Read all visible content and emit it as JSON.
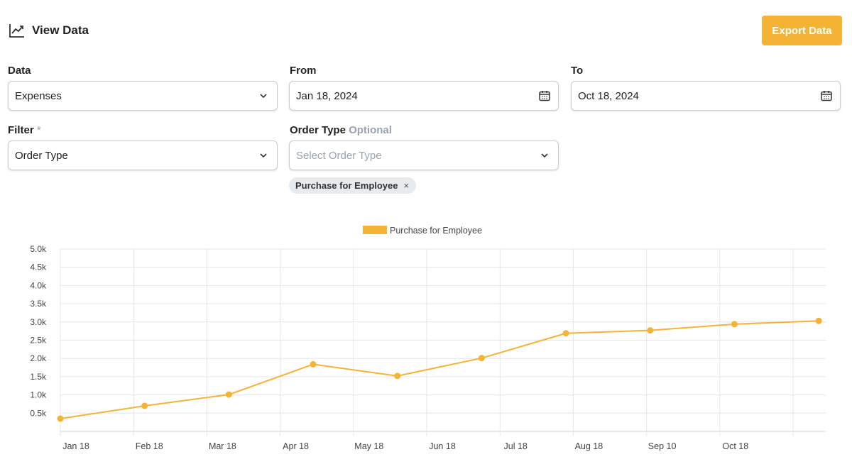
{
  "header": {
    "title": "View Data",
    "icon": "line-chart-icon",
    "export_label": "Export Data"
  },
  "form": {
    "data": {
      "label": "Data",
      "value": "Expenses"
    },
    "from": {
      "label": "From",
      "value": "Jan 18, 2024"
    },
    "to": {
      "label": "To",
      "value": "Oct 18, 2024"
    },
    "filter": {
      "label": "Filter",
      "required_mark": "*",
      "value": "Order Type"
    },
    "order_type": {
      "label": "Order Type",
      "optional_text": "Optional",
      "placeholder": "Select Order Type"
    },
    "selected_chip": {
      "label": "Purchase for Employee",
      "remove": "×"
    }
  },
  "colors": {
    "accent": "#f5b336",
    "series": "#f5b336",
    "grid": "#e6e6e6"
  },
  "chart_data": {
    "type": "line",
    "legend": {
      "position": "top-center"
    },
    "categories": [
      "Jan 18",
      "Feb 18",
      "Mar 18",
      "Apr 18",
      "May 18",
      "Jun 18",
      "Jul 18",
      "Aug 18",
      "Sep 10",
      "Oct 18"
    ],
    "yticks": [
      "0.5k",
      "1.0k",
      "1.5k",
      "2.0k",
      "2.5k",
      "3.0k",
      "3.5k",
      "4.0k",
      "4.5k",
      "5.0k"
    ],
    "ylim": [
      0,
      5000
    ],
    "grid": true,
    "series": [
      {
        "name": "Purchase for Employee",
        "points": [
          {
            "x": 0.0,
            "y": 350
          },
          {
            "x": 1.15,
            "y": 700
          },
          {
            "x": 2.3,
            "y": 1010
          },
          {
            "x": 3.45,
            "y": 1840
          },
          {
            "x": 4.6,
            "y": 1520
          },
          {
            "x": 5.75,
            "y": 2010
          },
          {
            "x": 6.9,
            "y": 2690
          },
          {
            "x": 8.05,
            "y": 2770
          },
          {
            "x": 9.2,
            "y": 2940
          },
          {
            "x": 10.35,
            "y": 3030
          }
        ]
      }
    ]
  }
}
